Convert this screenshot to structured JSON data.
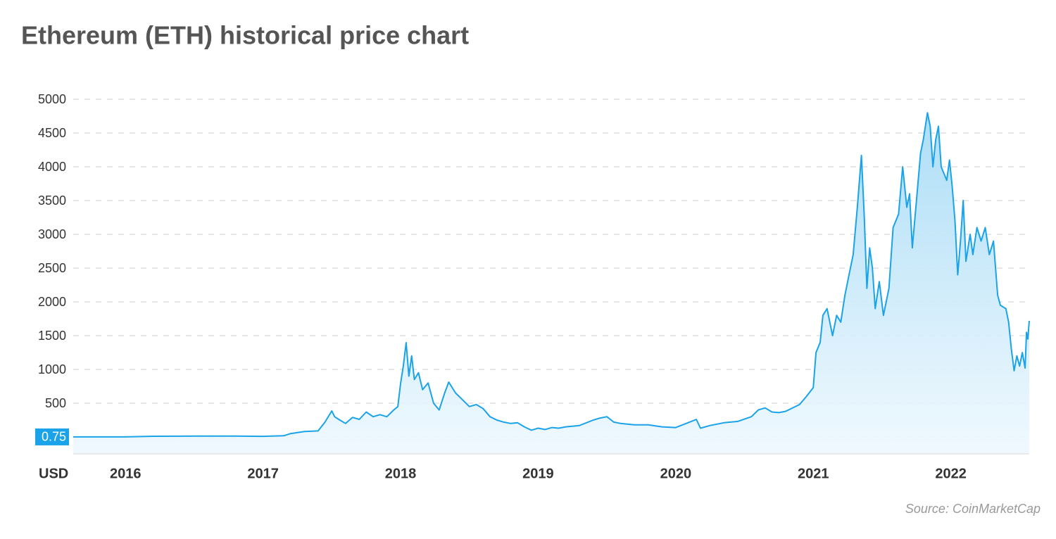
{
  "chart_data": {
    "type": "area",
    "title": "Ethereum (ETH) historical price chart",
    "y_label": "USD",
    "source": "Source: CoinMarketCap",
    "color": "#1ba3e9",
    "grid": true,
    "highlight_tick_index": 0,
    "xlim": [
      2015.62,
      2022.57
    ],
    "xticks": [
      2016,
      2017,
      2018,
      2019,
      2020,
      2021,
      2022
    ],
    "ylim": [
      -250,
      5000
    ],
    "yticks": [
      0.75,
      500,
      1000,
      1500,
      2000,
      2500,
      3000,
      3500,
      4000,
      4500,
      5000
    ],
    "x": [
      2015.62,
      2015.8,
      2016.0,
      2016.2,
      2016.5,
      2016.8,
      2017.0,
      2017.15,
      2017.2,
      2017.3,
      2017.4,
      2017.45,
      2017.5,
      2017.52,
      2017.55,
      2017.6,
      2017.65,
      2017.7,
      2017.75,
      2017.8,
      2017.85,
      2017.9,
      2017.95,
      2017.98,
      2018.0,
      2018.02,
      2018.04,
      2018.06,
      2018.08,
      2018.1,
      2018.13,
      2018.16,
      2018.2,
      2018.24,
      2018.28,
      2018.32,
      2018.35,
      2018.4,
      2018.45,
      2018.5,
      2018.55,
      2018.6,
      2018.65,
      2018.7,
      2018.75,
      2018.8,
      2018.85,
      2018.9,
      2018.95,
      2019.0,
      2019.05,
      2019.1,
      2019.15,
      2019.2,
      2019.3,
      2019.4,
      2019.45,
      2019.5,
      2019.55,
      2019.6,
      2019.7,
      2019.8,
      2019.9,
      2020.0,
      2020.1,
      2020.15,
      2020.18,
      2020.25,
      2020.35,
      2020.45,
      2020.55,
      2020.6,
      2020.65,
      2020.7,
      2020.75,
      2020.8,
      2020.9,
      2020.95,
      2021.0,
      2021.02,
      2021.05,
      2021.07,
      2021.1,
      2021.14,
      2021.17,
      2021.2,
      2021.23,
      2021.26,
      2021.29,
      2021.32,
      2021.35,
      2021.37,
      2021.39,
      2021.41,
      2021.43,
      2021.45,
      2021.48,
      2021.51,
      2021.55,
      2021.58,
      2021.62,
      2021.65,
      2021.68,
      2021.7,
      2021.72,
      2021.75,
      2021.78,
      2021.8,
      2021.83,
      2021.85,
      2021.87,
      2021.89,
      2021.91,
      2021.93,
      2021.97,
      2021.99,
      2022.01,
      2022.03,
      2022.05,
      2022.07,
      2022.09,
      2022.11,
      2022.14,
      2022.16,
      2022.19,
      2022.22,
      2022.25,
      2022.28,
      2022.31,
      2022.34,
      2022.36,
      2022.4,
      2022.42,
      2022.44,
      2022.46,
      2022.48,
      2022.5,
      2022.52,
      2022.54,
      2022.55,
      2022.56,
      2022.57
    ],
    "values": [
      0.75,
      1,
      1,
      10,
      12,
      12,
      9,
      18,
      50,
      80,
      90,
      220,
      385,
      300,
      260,
      200,
      290,
      260,
      370,
      300,
      330,
      300,
      400,
      450,
      790,
      1050,
      1396,
      900,
      1200,
      850,
      950,
      700,
      800,
      500,
      400,
      650,
      812,
      650,
      550,
      450,
      480,
      420,
      300,
      250,
      220,
      200,
      210,
      150,
      100,
      130,
      110,
      140,
      130,
      150,
      170,
      250,
      280,
      300,
      220,
      200,
      180,
      180,
      150,
      140,
      220,
      260,
      130,
      170,
      210,
      230,
      300,
      400,
      430,
      370,
      360,
      380,
      480,
      600,
      730,
      1250,
      1400,
      1800,
      1900,
      1500,
      1800,
      1700,
      2100,
      2400,
      2700,
      3400,
      4168,
      3300,
      2200,
      2800,
      2500,
      1900,
      2300,
      1800,
      2200,
      3100,
      3300,
      4000,
      3400,
      3600,
      2800,
      3500,
      4200,
      4400,
      4800,
      4600,
      4000,
      4400,
      4600,
      4000,
      3800,
      4100,
      3700,
      3200,
      2400,
      2900,
      3500,
      2600,
      3000,
      2700,
      3100,
      2900,
      3100,
      2700,
      2900,
      2100,
      1950,
      1900,
      1700,
      1300,
      980,
      1200,
      1050,
      1250,
      1020,
      1550,
      1450,
      1720
    ]
  }
}
